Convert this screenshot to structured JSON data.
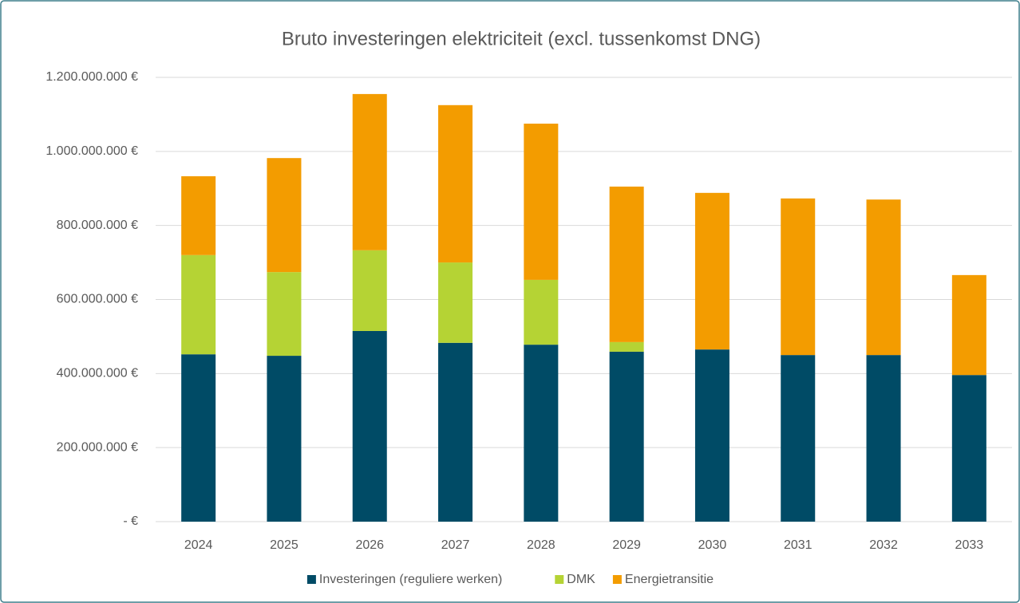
{
  "chart_data": {
    "type": "stacked_bar",
    "title": "Bruto investeringen elektriciteit (excl. tussenkomst DNG)",
    "categories": [
      "2024",
      "2025",
      "2026",
      "2027",
      "2028",
      "2029",
      "2030",
      "2031",
      "2032",
      "2033"
    ],
    "series": [
      {
        "name": "Investeringen (reguliere werken)",
        "color": "#004b66",
        "values": [
          452000000,
          448000000,
          515000000,
          483000000,
          478000000,
          459000000,
          465000000,
          450000000,
          450000000,
          396000000
        ]
      },
      {
        "name": "DMK",
        "color": "#b5d334",
        "values": [
          268000000,
          226000000,
          218000000,
          217000000,
          175000000,
          26000000,
          0,
          0,
          0,
          0
        ]
      },
      {
        "name": "Energietransitie",
        "color": "#f39c00",
        "values": [
          213000000,
          308000000,
          422000000,
          425000000,
          422000000,
          420000000,
          423000000,
          423000000,
          420000000,
          270000000
        ]
      }
    ],
    "ylim": [
      0,
      1200000000
    ],
    "yticks": [
      {
        "value": 0,
        "label": "-  €"
      },
      {
        "value": 200000000,
        "label": "200.000.000 €"
      },
      {
        "value": 400000000,
        "label": "400.000.000 €"
      },
      {
        "value": 600000000,
        "label": "600.000.000 €"
      },
      {
        "value": 800000000,
        "label": "800.000.000 €"
      },
      {
        "value": 1000000000,
        "label": "1.000.000.000 €"
      },
      {
        "value": 1200000000,
        "label": "1.200.000.000 €"
      }
    ],
    "grid": true,
    "legend": "bottom"
  }
}
